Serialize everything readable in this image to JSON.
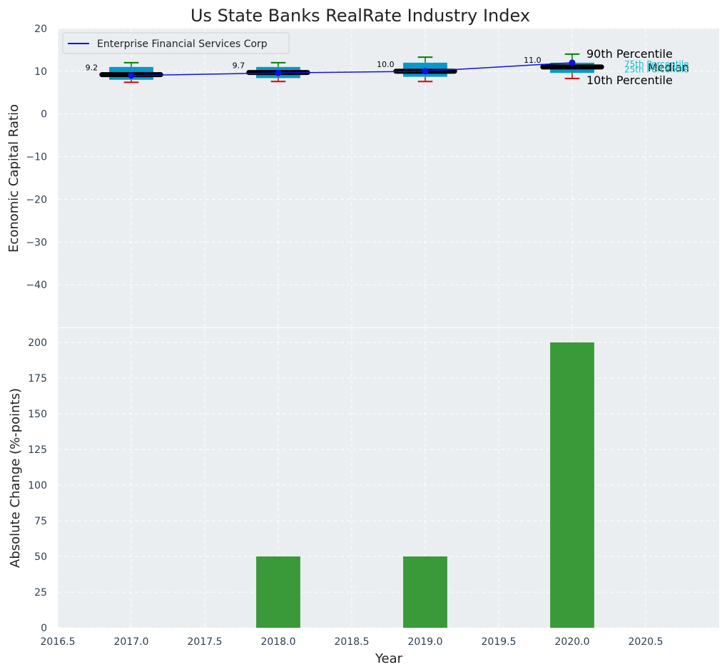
{
  "chart_data": {
    "title": "Us State Banks RealRate Industry Index",
    "xlabel": "Year",
    "x_ticks": [
      "2016.5",
      "2017.0",
      "2017.5",
      "2018.0",
      "2018.5",
      "2019.0",
      "2019.5",
      "2020.0",
      "2020.5"
    ],
    "x_tick_values": [
      2016.5,
      2017.0,
      2017.5,
      2018.0,
      2018.5,
      2019.0,
      2019.5,
      2020.0,
      2020.5
    ],
    "xlim": [
      2016.5,
      2021.0
    ],
    "colors": {
      "background": "#eaeef0",
      "box": "#0899c9",
      "median": "#000000",
      "company_line": "#1010e8",
      "whisker_high": "#008000",
      "whisker_low": "#dd0000",
      "bar": "#3a9a3a",
      "grid": "#ffffff",
      "tick_text": "#2d3e50",
      "label_text": "#222222",
      "quartile_label": "#17becf"
    },
    "top": {
      "type": "box",
      "ylabel": "Economic Capital Ratio",
      "ylim": [
        -50,
        20
      ],
      "y_ticks": [
        "20",
        "10",
        "0",
        "−10",
        "−20",
        "−30",
        "−40"
      ],
      "y_tick_values": [
        20,
        10,
        0,
        -10,
        -20,
        -30,
        -40
      ],
      "legend_label": "Enterprise Financial Services Corp",
      "legend_position": "top-left",
      "years": [
        2017,
        2018,
        2019,
        2020
      ],
      "p10": [
        7.4,
        7.6,
        7.6,
        8.3
      ],
      "p25": [
        8.0,
        8.4,
        8.7,
        9.6
      ],
      "median": [
        9.2,
        9.7,
        10.0,
        11.0
      ],
      "p75": [
        11.0,
        11.0,
        12.0,
        12.0
      ],
      "p90": [
        12.0,
        12.0,
        13.3,
        14.0
      ],
      "company": [
        9.0,
        9.6,
        10.0,
        12.0
      ],
      "median_labels": [
        "9.2",
        "9.7",
        "10.0",
        "11.0"
      ],
      "annotations": {
        "p90": "90th Percentile",
        "median": "Median",
        "p10": "10th Percentile",
        "p75": "75th Percentile",
        "p25": "25th Percentile"
      }
    },
    "bottom": {
      "type": "bar",
      "ylabel": "Absolute Change (%-points)",
      "ylim": [
        0,
        210
      ],
      "y_ticks": [
        "0",
        "25",
        "50",
        "75",
        "100",
        "125",
        "150",
        "175",
        "200"
      ],
      "y_tick_values": [
        0,
        25,
        50,
        75,
        100,
        125,
        150,
        175,
        200
      ],
      "x": [
        2017,
        2018,
        2019,
        2020
      ],
      "values": [
        0,
        50,
        50,
        200
      ],
      "bar_width": 0.3
    }
  }
}
